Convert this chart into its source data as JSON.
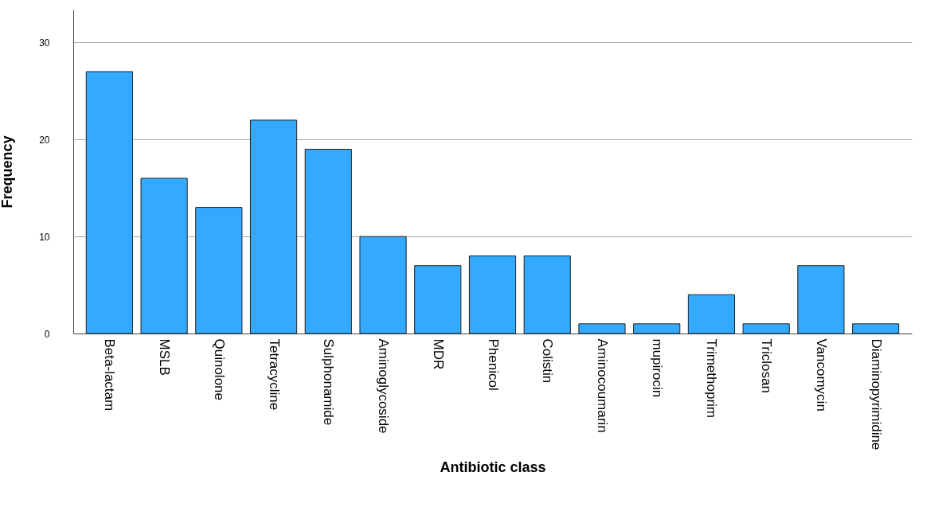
{
  "chart_data": {
    "type": "bar",
    "xlabel": "Antibiotic class",
    "ylabel": "Frequency",
    "categories": [
      "Beta-lactam",
      "MSLB",
      "Quinolone",
      "Tetracycline",
      "Sulphonamide",
      "Aminoglycoside",
      "MDR",
      "Phenicol",
      "Colistin",
      "Aminocoumarin",
      "mupirocin",
      "Trimethoprim",
      "Triclosan",
      "Vancomycin",
      "Diaminopyrimidine"
    ],
    "values": [
      27,
      16,
      13,
      22,
      19,
      10,
      7,
      8,
      8,
      1,
      1,
      4,
      1,
      7,
      1
    ],
    "color": "#33aaff",
    "ylim": [
      0,
      33.4
    ],
    "yticks": [
      0,
      10,
      20,
      30
    ],
    "grid": "y"
  }
}
